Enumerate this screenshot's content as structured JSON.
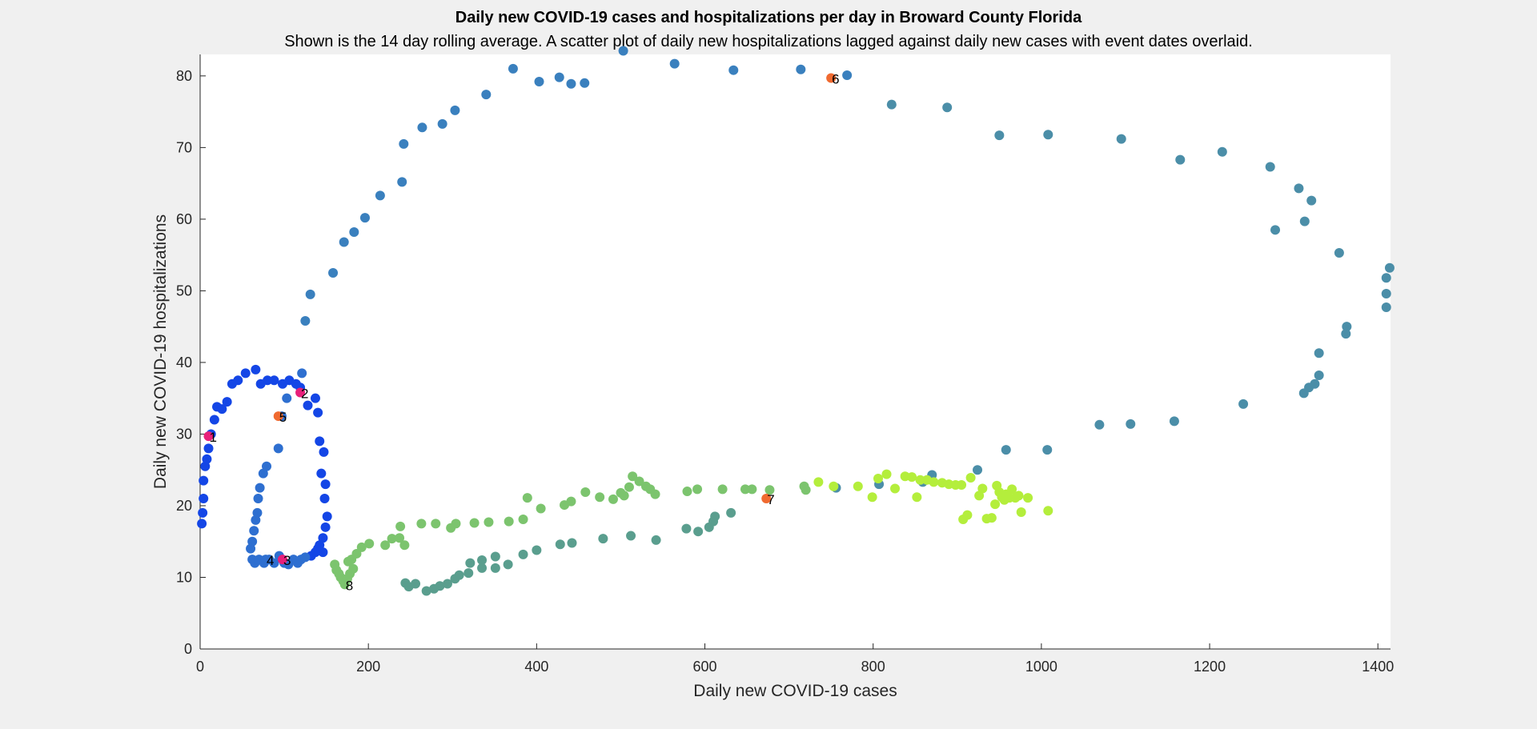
{
  "chart_data": {
    "type": "scatter",
    "title": "Daily new COVID-19 cases and hospitalizations per day in Broward County Florida",
    "subtitle": "Shown is the 14 day rolling average. A scatter plot of daily new hospitalizations lagged against daily new cases with event dates overlaid.",
    "xlabel": "Daily new COVID-19 cases",
    "ylabel": "Daily new COVID-19 hospitalizations",
    "xlim": [
      0,
      1415
    ],
    "ylim": [
      0,
      83
    ],
    "xticks": [
      0,
      200,
      400,
      600,
      800,
      1000,
      1200,
      1400
    ],
    "yticks": [
      0,
      10,
      20,
      30,
      40,
      50,
      60,
      70,
      80
    ],
    "grid": false,
    "legend": "none",
    "colors": {
      "early": "#1446e6",
      "first_wave": "#2e6fd0",
      "summer_wave": "#3a80be",
      "summer_decline": "#4b8ea8",
      "fall": "#5a9e8e",
      "winter_rise": "#7cc46e",
      "winter_high": "#b4ee3c",
      "event": "#f06a30",
      "event_alt": "#e8207a"
    },
    "series": [
      {
        "color": "#1446e6",
        "points": [
          [
            2,
            17.5
          ],
          [
            3,
            19
          ],
          [
            4,
            21
          ],
          [
            4,
            23.5
          ],
          [
            6,
            25.5
          ],
          [
            8,
            26.5
          ],
          [
            10,
            28
          ],
          [
            13,
            30
          ],
          [
            17,
            32
          ],
          [
            20,
            33.8
          ],
          [
            26,
            33.5
          ],
          [
            32,
            34.5
          ],
          [
            38,
            37
          ],
          [
            45,
            37.5
          ],
          [
            54,
            38.5
          ],
          [
            66,
            39
          ],
          [
            72,
            37
          ],
          [
            80,
            37.5
          ],
          [
            88,
            37.5
          ],
          [
            98,
            37
          ],
          [
            106,
            37.5
          ],
          [
            114,
            37
          ],
          [
            119,
            36.5
          ],
          [
            128,
            34
          ],
          [
            137,
            35
          ],
          [
            140,
            33
          ],
          [
            142,
            29
          ],
          [
            147,
            27.5
          ],
          [
            144,
            24.5
          ],
          [
            149,
            23
          ],
          [
            148,
            21
          ],
          [
            151,
            18.5
          ],
          [
            149,
            17
          ],
          [
            146,
            15.5
          ],
          [
            142,
            14.5
          ],
          [
            137,
            13.5
          ],
          [
            132,
            13
          ],
          [
            146,
            13.5
          ],
          [
            140,
            14
          ]
        ]
      },
      {
        "color": "#2e6fd0",
        "points": [
          [
            62,
            12.5
          ],
          [
            65,
            12
          ],
          [
            70,
            12.5
          ],
          [
            76,
            12
          ],
          [
            82,
            12.5
          ],
          [
            88,
            12
          ],
          [
            94,
            13
          ],
          [
            100,
            12
          ],
          [
            105,
            11.8
          ],
          [
            111,
            12.5
          ],
          [
            116,
            12
          ],
          [
            120,
            12.5
          ],
          [
            125,
            12.8
          ],
          [
            60,
            14
          ],
          [
            62,
            15
          ],
          [
            64,
            16.5
          ],
          [
            66,
            18
          ],
          [
            68,
            19
          ],
          [
            69,
            21
          ],
          [
            71,
            22.5
          ],
          [
            75,
            24.5
          ],
          [
            79,
            25.5
          ],
          [
            93,
            28
          ],
          [
            103,
            35
          ],
          [
            97,
            32.5
          ],
          [
            121,
            38.5
          ]
        ]
      },
      {
        "color": "#3a80be",
        "points": [
          [
            125,
            45.8
          ],
          [
            131,
            49.5
          ],
          [
            158,
            52.5
          ],
          [
            171,
            56.8
          ],
          [
            183,
            58.2
          ],
          [
            196,
            60.2
          ],
          [
            214,
            63.3
          ],
          [
            240,
            65.2
          ],
          [
            242,
            70.5
          ],
          [
            264,
            72.8
          ],
          [
            288,
            73.3
          ],
          [
            303,
            75.2
          ],
          [
            340,
            77.4
          ],
          [
            372,
            81
          ],
          [
            403,
            79.2
          ],
          [
            427,
            79.8
          ],
          [
            441,
            78.9
          ],
          [
            457,
            79
          ],
          [
            503,
            83.5
          ],
          [
            564,
            81.7
          ],
          [
            634,
            80.8
          ],
          [
            714,
            80.9
          ],
          [
            769,
            80.1
          ]
        ]
      },
      {
        "color": "#4b8ea8",
        "points": [
          [
            822,
            76
          ],
          [
            888,
            75.6
          ],
          [
            950,
            71.7
          ],
          [
            1008,
            71.8
          ],
          [
            1095,
            71.2
          ],
          [
            1165,
            68.3
          ],
          [
            1215,
            69.4
          ],
          [
            1272,
            67.3
          ],
          [
            1306,
            64.3
          ],
          [
            1321,
            62.6
          ],
          [
            1278,
            58.5
          ],
          [
            1313,
            59.7
          ],
          [
            1354,
            55.3
          ],
          [
            1414,
            53.2
          ],
          [
            1410,
            51.8
          ],
          [
            1410,
            49.6
          ],
          [
            1410,
            47.7
          ],
          [
            1363,
            45
          ],
          [
            1362,
            44
          ],
          [
            1330,
            41.3
          ],
          [
            1330,
            38.2
          ],
          [
            1325,
            37
          ],
          [
            1318,
            36.5
          ],
          [
            1312,
            35.7
          ],
          [
            1240,
            34.2
          ],
          [
            1158,
            31.8
          ],
          [
            1106,
            31.4
          ],
          [
            1069,
            31.3
          ],
          [
            1007,
            27.8
          ],
          [
            958,
            27.8
          ],
          [
            924,
            25
          ],
          [
            870,
            24.3
          ],
          [
            859,
            23.3
          ],
          [
            807,
            23
          ],
          [
            756,
            22.5
          ]
        ]
      },
      {
        "color": "#5a9e8e",
        "points": [
          [
            631,
            19
          ],
          [
            612,
            18.5
          ],
          [
            610,
            17.8
          ],
          [
            605,
            17
          ],
          [
            592,
            16.4
          ],
          [
            578,
            16.8
          ],
          [
            542,
            15.2
          ],
          [
            512,
            15.8
          ],
          [
            479,
            15.4
          ],
          [
            442,
            14.8
          ],
          [
            428,
            14.6
          ],
          [
            400,
            13.8
          ],
          [
            384,
            13.2
          ],
          [
            366,
            11.8
          ],
          [
            351,
            11.3
          ],
          [
            335,
            11.3
          ],
          [
            319,
            10.6
          ],
          [
            308,
            10.3
          ],
          [
            303,
            9.8
          ],
          [
            294,
            9.1
          ],
          [
            285,
            8.8
          ],
          [
            278,
            8.4
          ],
          [
            269,
            8.1
          ],
          [
            256,
            9.1
          ],
          [
            248,
            8.7
          ],
          [
            244,
            9.2
          ],
          [
            351,
            12.9
          ],
          [
            321,
            12
          ],
          [
            335,
            12.4
          ]
        ]
      },
      {
        "color": "#7cc46e",
        "points": [
          [
            160,
            11.8
          ],
          [
            162,
            11
          ],
          [
            165,
            10.5
          ],
          [
            167,
            10
          ],
          [
            170,
            9.5
          ],
          [
            172,
            9.2
          ],
          [
            175,
            9.8
          ],
          [
            178,
            10.5
          ],
          [
            182,
            11.2
          ],
          [
            180,
            12.5
          ],
          [
            176,
            12.2
          ],
          [
            186,
            13.3
          ],
          [
            192,
            14.2
          ],
          [
            201,
            14.7
          ],
          [
            220,
            14.5
          ],
          [
            228,
            15.4
          ],
          [
            237,
            15.5
          ],
          [
            243,
            14.5
          ],
          [
            238,
            17.1
          ],
          [
            263,
            17.5
          ],
          [
            280,
            17.5
          ],
          [
            298,
            16.9
          ],
          [
            304,
            17.5
          ],
          [
            326,
            17.6
          ],
          [
            343,
            17.7
          ],
          [
            367,
            17.8
          ],
          [
            384,
            18.1
          ],
          [
            389,
            21.1
          ],
          [
            405,
            19.6
          ],
          [
            433,
            20.1
          ],
          [
            441,
            20.6
          ],
          [
            458,
            21.9
          ],
          [
            475,
            21.2
          ],
          [
            491,
            20.9
          ],
          [
            500,
            21.8
          ],
          [
            504,
            21.4
          ],
          [
            510,
            22.6
          ],
          [
            514,
            24.1
          ],
          [
            522,
            23.4
          ],
          [
            530,
            22.7
          ],
          [
            535,
            22.3
          ],
          [
            541,
            21.6
          ],
          [
            579,
            22
          ],
          [
            591,
            22.3
          ],
          [
            621,
            22.3
          ],
          [
            648,
            22.3
          ],
          [
            656,
            22.3
          ],
          [
            677,
            22.2
          ],
          [
            718,
            22.7
          ],
          [
            720,
            22.2
          ]
        ]
      },
      {
        "color": "#b4ee3c",
        "points": [
          [
            735,
            23.3
          ],
          [
            753,
            22.7
          ],
          [
            782,
            22.7
          ],
          [
            799,
            21.2
          ],
          [
            806,
            23.8
          ],
          [
            816,
            24.4
          ],
          [
            826,
            22.4
          ],
          [
            838,
            24.1
          ],
          [
            846,
            24
          ],
          [
            852,
            21.2
          ],
          [
            856,
            23.6
          ],
          [
            864,
            23.6
          ],
          [
            872,
            23.3
          ],
          [
            882,
            23.2
          ],
          [
            890,
            23
          ],
          [
            898,
            22.9
          ],
          [
            905,
            22.9
          ],
          [
            916,
            23.9
          ],
          [
            926,
            21.4
          ],
          [
            930,
            22.4
          ],
          [
            935,
            18.2
          ],
          [
            941,
            18.3
          ],
          [
            945,
            20.2
          ],
          [
            947,
            22.8
          ],
          [
            950,
            21.9
          ],
          [
            953,
            21.2
          ],
          [
            956,
            20.8
          ],
          [
            958,
            21.6
          ],
          [
            962,
            21.1
          ],
          [
            965,
            22.3
          ],
          [
            969,
            21.1
          ],
          [
            973,
            21.4
          ],
          [
            976,
            19.1
          ],
          [
            984,
            21.1
          ],
          [
            907,
            18.1
          ],
          [
            912,
            18.7
          ],
          [
            1008,
            19.3
          ]
        ]
      }
    ],
    "events": [
      {
        "label": "1",
        "x": 10,
        "y": 29.7,
        "color": "#e8207a"
      },
      {
        "label": "2",
        "x": 119,
        "y": 35.8,
        "color": "#e8207a"
      },
      {
        "label": "3",
        "x": 98,
        "y": 12.5,
        "color": "#e8207a"
      },
      {
        "label": "4",
        "x": 78,
        "y": 12.5,
        "color": "#2e6fd0"
      },
      {
        "label": "5",
        "x": 93,
        "y": 32.5,
        "color": "#f06a30"
      },
      {
        "label": "6",
        "x": 750,
        "y": 79.7,
        "color": "#f06a30"
      },
      {
        "label": "7",
        "x": 673,
        "y": 21,
        "color": "#f06a30"
      },
      {
        "label": "8",
        "x": 172,
        "y": 9,
        "color": "#7cc46e"
      }
    ]
  }
}
